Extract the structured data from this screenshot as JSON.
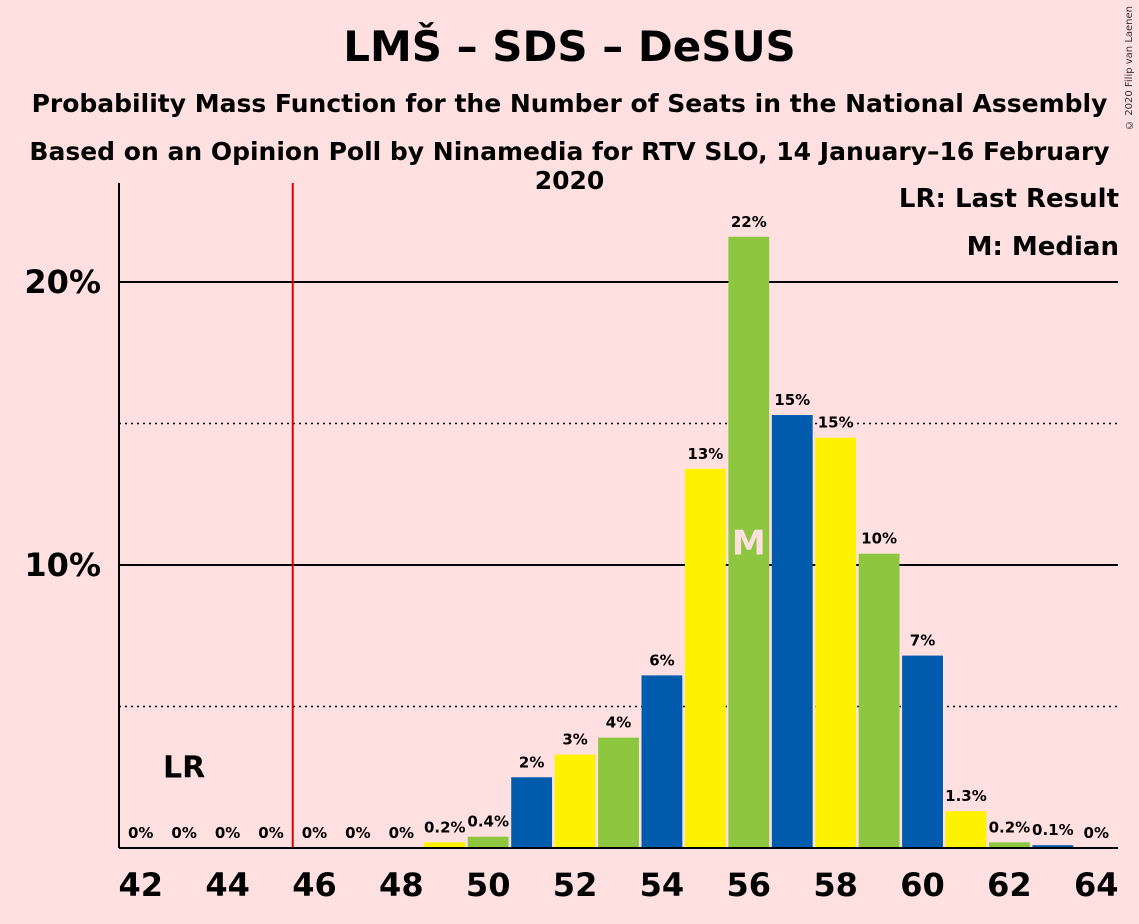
{
  "chart_data": {
    "type": "bar",
    "title": "LMŠ – SDS – DeSUS",
    "subtitle": "Probability Mass Function for the Number of Seats in the National Assembly",
    "subtitle2": "Based on an Opinion Poll by Ninamedia for RTV SLO, 14 January–16 February 2020",
    "copyright": "© 2020 Filip van Laenen",
    "legend": [
      "LR: Last Result",
      "M: Median"
    ],
    "legend_placement": "top-right",
    "x": [
      42,
      43,
      44,
      45,
      46,
      47,
      48,
      49,
      50,
      51,
      52,
      53,
      54,
      55,
      56,
      57,
      58,
      59,
      60,
      61,
      62,
      63,
      64
    ],
    "values": [
      0,
      0,
      0,
      0,
      0,
      0,
      0,
      0.2,
      0.4,
      2.5,
      3.3,
      3.9,
      6.1,
      13.4,
      21.6,
      15.3,
      14.5,
      10.4,
      6.8,
      1.3,
      0.2,
      0.1,
      0
    ],
    "value_labels": [
      "0%",
      "0%",
      "0%",
      "0%",
      "0%",
      "0%",
      "0%",
      "0.2%",
      "0.4%",
      "2%",
      "3%",
      "4%",
      "6%",
      "13%",
      "22%",
      "15%",
      "15%",
      "10%",
      "7%",
      "1.3%",
      "0.2%",
      "0.1%",
      "0%"
    ],
    "xtick_labels": [
      "42",
      "44",
      "46",
      "48",
      "50",
      "52",
      "54",
      "56",
      "58",
      "60",
      "62",
      "64"
    ],
    "ytick_labels": [
      "10%",
      "20%"
    ],
    "ylim": [
      0,
      23.5
    ],
    "xlim": [
      41.5,
      64.5
    ],
    "solid_gridlines": [
      10,
      20
    ],
    "dotted_gridlines": [
      5,
      15
    ],
    "last_result": 45.5,
    "last_result_label": "LR",
    "median": 56,
    "median_label": "M",
    "bar_color_cycle": [
      "#005BAC",
      "#FFF200",
      "#8DC63F"
    ],
    "lr_line_color": "#E00000"
  }
}
